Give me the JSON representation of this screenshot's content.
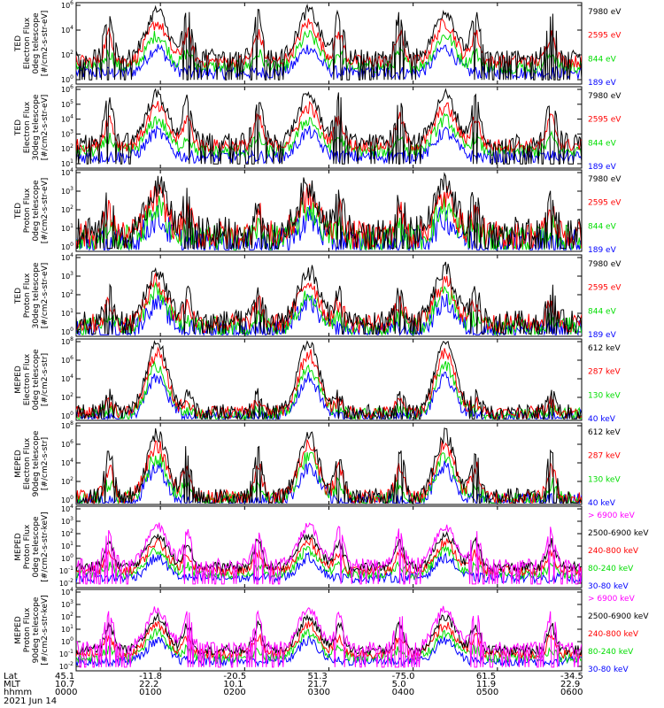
{
  "chart_data": {
    "type": "line",
    "date": "2021 Jun 14",
    "time_start": "0000",
    "time_end": "0600",
    "footer": {
      "row_labels": [
        "Lat",
        "MLT",
        "hhmm"
      ],
      "ticks": [
        {
          "lat": "45.1",
          "mlt": "10.7",
          "hhmm": "0000"
        },
        {
          "lat": "-11.8",
          "mlt": "22.2",
          "hhmm": "0100"
        },
        {
          "lat": "-20.5",
          "mlt": "10.1",
          "hhmm": "0200"
        },
        {
          "lat": "51.3",
          "mlt": "21.7",
          "hhmm": "0300"
        },
        {
          "lat": "-75.0",
          "mlt": "5.0",
          "hhmm": "0400"
        },
        {
          "lat": "61.5",
          "mlt": "11.9",
          "hhmm": "0500"
        },
        {
          "lat": "-34.5",
          "mlt": "22.9",
          "hhmm": "0600"
        }
      ]
    },
    "panels": [
      {
        "ylabel": [
          "TED",
          "Electron Flux",
          "0deg telescope",
          "[#/cm2-s-str-eV]"
        ],
        "yticks": [
          "10^6",
          "10^4",
          "10^2",
          "10^0"
        ],
        "ylog": [
          0,
          6
        ],
        "series": [
          {
            "name": "7980 eV",
            "color": "#000000"
          },
          {
            "name": "2595 eV",
            "color": "#ff0000"
          },
          {
            "name": "844 eV",
            "color": "#00dd00"
          },
          {
            "name": "189 eV",
            "color": "#0000ff"
          }
        ]
      },
      {
        "ylabel": [
          "TED",
          "Electron Flux",
          "30deg telescope",
          "[#/cm2-s-str-eV]"
        ],
        "yticks": [
          "10^6",
          "10^5",
          "10^4",
          "10^3",
          "10^2",
          "10^1"
        ],
        "ylog": [
          1,
          6
        ],
        "series": [
          {
            "name": "7980 eV",
            "color": "#000000"
          },
          {
            "name": "2595 eV",
            "color": "#ff0000"
          },
          {
            "name": "844 eV",
            "color": "#00dd00"
          },
          {
            "name": "189 eV",
            "color": "#0000ff"
          }
        ]
      },
      {
        "ylabel": [
          "TED",
          "Proton Flux",
          "0deg telescope",
          "[#/cm2-s-str-eV]"
        ],
        "yticks": [
          "10^4",
          "10^3",
          "10^2",
          "10^1",
          "10^0"
        ],
        "ylog": [
          0,
          4
        ],
        "series": [
          {
            "name": "7980 eV",
            "color": "#000000"
          },
          {
            "name": "2595 eV",
            "color": "#ff0000"
          },
          {
            "name": "844 eV",
            "color": "#00dd00"
          },
          {
            "name": "189 eV",
            "color": "#0000ff"
          }
        ]
      },
      {
        "ylabel": [
          "TED",
          "Proton Flux",
          "30deg telescope",
          "[#/cm2-s-str-eV]"
        ],
        "yticks": [
          "10^4",
          "10^3",
          "10^2",
          "10^1",
          "10^0"
        ],
        "ylog": [
          0,
          4
        ],
        "series": [
          {
            "name": "7980 eV",
            "color": "#000000"
          },
          {
            "name": "2595 eV",
            "color": "#ff0000"
          },
          {
            "name": "844 eV",
            "color": "#00dd00"
          },
          {
            "name": "189 eV",
            "color": "#0000ff"
          }
        ]
      },
      {
        "ylabel": [
          "MEPED",
          "Electron Flux",
          "0deg telescope",
          "[#/cm2-s-str]"
        ],
        "yticks": [
          "10^8",
          "10^6",
          "10^4",
          "10^2",
          "10^0"
        ],
        "ylog": [
          0,
          8
        ],
        "series": [
          {
            "name": "612 keV",
            "color": "#000000"
          },
          {
            "name": "287 keV",
            "color": "#ff0000"
          },
          {
            "name": "130 keV",
            "color": "#00dd00"
          },
          {
            "name": "40 keV",
            "color": "#0000ff"
          }
        ]
      },
      {
        "ylabel": [
          "MEPED",
          "Electron Flux",
          "90deg telescope",
          "[#/cm2-s-str]"
        ],
        "yticks": [
          "10^8",
          "10^6",
          "10^4",
          "10^2",
          "10^0"
        ],
        "ylog": [
          0,
          8
        ],
        "series": [
          {
            "name": "612 keV",
            "color": "#000000"
          },
          {
            "name": "287 keV",
            "color": "#ff0000"
          },
          {
            "name": "130 keV",
            "color": "#00dd00"
          },
          {
            "name": "40 keV",
            "color": "#0000ff"
          }
        ]
      },
      {
        "ylabel": [
          "MEPED",
          "Proton Flux",
          "0deg telescope",
          "[#/cm2-s-str-keV]"
        ],
        "yticks": [
          "10^4",
          "10^3",
          "10^2",
          "10^1",
          "10^0",
          "10^-1",
          "10^-2"
        ],
        "ylog": [
          -2,
          4
        ],
        "series": [
          {
            "name": "> 6900 keV",
            "color": "#ff00ff"
          },
          {
            "name": "2500-6900 keV",
            "color": "#000000"
          },
          {
            "name": "240-800 keV",
            "color": "#ff0000"
          },
          {
            "name": "80-240 keV",
            "color": "#00dd00"
          },
          {
            "name": "30-80 keV",
            "color": "#0000ff"
          }
        ]
      },
      {
        "ylabel": [
          "MEPED",
          "Proton Flux",
          "90deg telescope",
          "[#/cm2-s-str-keV]"
        ],
        "yticks": [
          "10^4",
          "10^3",
          "10^2",
          "10^1",
          "10^0",
          "10^-1",
          "10^-2"
        ],
        "ylog": [
          -2,
          4
        ],
        "series": [
          {
            "name": "> 6900 keV",
            "color": "#ff00ff"
          },
          {
            "name": "2500-6900 keV",
            "color": "#000000"
          },
          {
            "name": "240-800 keV",
            "color": "#ff0000"
          },
          {
            "name": "80-240 keV",
            "color": "#00dd00"
          },
          {
            "name": "30-80 keV",
            "color": "#0000ff"
          }
        ]
      }
    ]
  }
}
